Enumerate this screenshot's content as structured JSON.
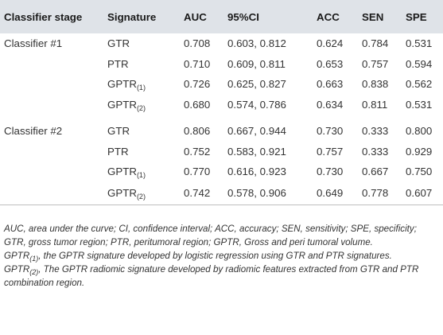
{
  "table": {
    "headers": [
      "Classifier stage",
      "Signature",
      "AUC",
      "95%CI",
      "ACC",
      "SEN",
      "SPE"
    ],
    "rows": [
      {
        "stage": "Classifier #1",
        "sig": "GTR",
        "sig_sub": "",
        "auc": "0.708",
        "ci": "0.603, 0.812",
        "acc": "0.624",
        "sen": "0.784",
        "spe": "0.531"
      },
      {
        "stage": "",
        "sig": "PTR",
        "sig_sub": "",
        "auc": "0.710",
        "ci": "0.609, 0.811",
        "acc": "0.653",
        "sen": "0.757",
        "spe": "0.594"
      },
      {
        "stage": "",
        "sig": "GPTR",
        "sig_sub": "(1)",
        "auc": "0.726",
        "ci": "0.625, 0.827",
        "acc": "0.663",
        "sen": "0.838",
        "spe": "0.562"
      },
      {
        "stage": "",
        "sig": "GPTR",
        "sig_sub": "(2)",
        "auc": "0.680",
        "ci": "0.574, 0.786",
        "acc": "0.634",
        "sen": "0.811",
        "spe": "0.531"
      },
      {
        "stage": "Classifier #2",
        "sig": "GTR",
        "sig_sub": "",
        "auc": "0.806",
        "ci": "0.667, 0.944",
        "acc": "0.730",
        "sen": "0.333",
        "spe": "0.800"
      },
      {
        "stage": "",
        "sig": "PTR",
        "sig_sub": "",
        "auc": "0.752",
        "ci": "0.583, 0.921",
        "acc": "0.757",
        "sen": "0.333",
        "spe": "0.929"
      },
      {
        "stage": "",
        "sig": "GPTR",
        "sig_sub": "(1)",
        "auc": "0.770",
        "ci": "0.616, 0.923",
        "acc": "0.730",
        "sen": "0.667",
        "spe": "0.750"
      },
      {
        "stage": "",
        "sig": "GPTR",
        "sig_sub": "(2)",
        "auc": "0.742",
        "ci": "0.578, 0.906",
        "acc": "0.649",
        "sen": "0.778",
        "spe": "0.607"
      }
    ]
  },
  "footnotes": {
    "abbrev": "AUC, area under the curve; CI, confidence interval; ACC, accuracy; SEN, sensitivity; SPE, specificity; GTR, gross tumor region; PTR, peritumoral region; GPTR, Gross and peri tumoral volume.",
    "note1_term": "GPTR",
    "note1_sub": "(1)",
    "note1_text": ", the GPTR signature developed by logistic regression using GTR and PTR signatures.",
    "note2_term": "GPTR",
    "note2_sub": "(2)",
    "note2_text": ", The GPTR radiomic signature developed by radiomic features extracted from GTR and PTR combination region."
  }
}
